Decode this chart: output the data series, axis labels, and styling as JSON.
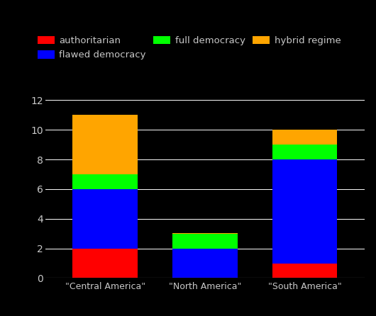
{
  "categories": [
    "\"Central America\"",
    "\"North America\"",
    "\"South America\""
  ],
  "series": {
    "authoritarian": [
      2,
      0,
      1
    ],
    "flawed democracy": [
      4,
      2,
      7
    ],
    "full democracy": [
      1,
      1,
      1
    ],
    "hybrid regime": [
      4,
      0.05,
      1
    ]
  },
  "colors": {
    "authoritarian": "#ff0000",
    "flawed democracy": "#0000ff",
    "full democracy": "#00ff00",
    "hybrid regime": "#ffa500"
  },
  "ylim": [
    0,
    13
  ],
  "yticks": [
    0,
    2,
    4,
    6,
    8,
    10,
    12
  ],
  "background_color": "#000000",
  "text_color": "#c8c8c8",
  "grid_color": "#ffffff",
  "legend_order": [
    "authoritarian",
    "flawed democracy",
    "full democracy",
    "hybrid regime"
  ],
  "bar_width": 0.65,
  "figsize": [
    5.3,
    4.46
  ],
  "dpi": 100
}
